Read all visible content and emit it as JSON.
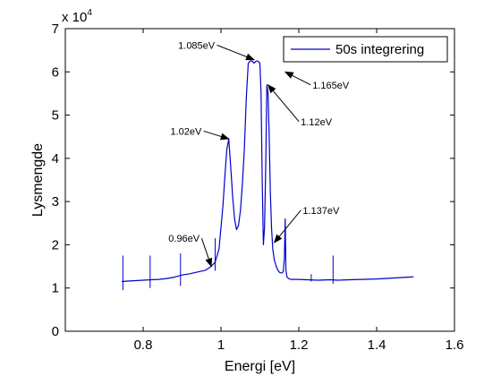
{
  "chart_data": {
    "type": "line",
    "title": "",
    "xlabel": "Energi [eV]",
    "ylabel": "Lysmengde",
    "xlim": [
      0.6,
      1.6
    ],
    "ylim": [
      0,
      70000
    ],
    "y_multiplier_label": "x 10",
    "y_multiplier_exponent": "4",
    "x_ticks": [
      0.8,
      1.0,
      1.2,
      1.4,
      1.6
    ],
    "x_tick_labels": [
      "0.8",
      "1",
      "1.2",
      "1.4",
      "1.6"
    ],
    "y_ticks": [
      0,
      10000,
      20000,
      30000,
      40000,
      50000,
      60000,
      70000
    ],
    "y_tick_labels": [
      "0",
      "1",
      "2",
      "3",
      "4",
      "5",
      "6",
      "7"
    ],
    "grid": false,
    "legend_position": "top-right",
    "series": [
      {
        "name": "50s integrering",
        "color": "#0000cc",
        "x": [
          0.745,
          0.76,
          0.78,
          0.8,
          0.82,
          0.84,
          0.86,
          0.88,
          0.9,
          0.92,
          0.94,
          0.96,
          0.975,
          0.985,
          0.995,
          1.0,
          1.005,
          1.01,
          1.015,
          1.02,
          1.025,
          1.03,
          1.035,
          1.04,
          1.045,
          1.05,
          1.055,
          1.06,
          1.065,
          1.07,
          1.075,
          1.08,
          1.085,
          1.09,
          1.095,
          1.1,
          1.103,
          1.106,
          1.109,
          1.112,
          1.115,
          1.118,
          1.121,
          1.124,
          1.127,
          1.13,
          1.133,
          1.137,
          1.142,
          1.147,
          1.152,
          1.157,
          1.16,
          1.163,
          1.165,
          1.167,
          1.17,
          1.175,
          1.18,
          1.2,
          1.22,
          1.25,
          1.28,
          1.3,
          1.33,
          1.36,
          1.4,
          1.44,
          1.48,
          1.495
        ],
        "y": [
          11500,
          11600,
          11700,
          11800,
          11900,
          12000,
          12200,
          12500,
          13000,
          13300,
          13700,
          14100,
          15000,
          16000,
          19000,
          24000,
          29000,
          36000,
          42000,
          44500,
          38000,
          31000,
          26000,
          23500,
          24500,
          28000,
          34000,
          42000,
          54000,
          62000,
          62500,
          62500,
          62000,
          62500,
          62500,
          62000,
          55000,
          35000,
          20000,
          24000,
          38000,
          57000,
          55000,
          45000,
          32000,
          24000,
          19000,
          16500,
          15000,
          14000,
          13500,
          13500,
          13800,
          17000,
          26000,
          14000,
          12500,
          12100,
          12000,
          12000,
          11900,
          11800,
          11900,
          11800,
          11900,
          12000,
          12100,
          12300,
          12500,
          12600
        ]
      }
    ],
    "spikes": [
      {
        "x": 0.748,
        "top": 17500,
        "bottom": 9500
      },
      {
        "x": 0.818,
        "top": 17500,
        "bottom": 10000
      },
      {
        "x": 0.896,
        "top": 18000,
        "bottom": 10500
      },
      {
        "x": 0.985,
        "top": 21500,
        "bottom": 14000
      },
      {
        "x": 1.232,
        "top": 13200,
        "bottom": 11500
      },
      {
        "x": 1.288,
        "top": 17500,
        "bottom": 11000
      }
    ],
    "annotations": [
      {
        "text": "1.085eV",
        "x": 1.085,
        "y": 62800,
        "text_x": 0.89,
        "text_y": 66200
      },
      {
        "text": "1.165eV",
        "x": 1.165,
        "y": 60000,
        "text_x": 1.235,
        "text_y": 57000
      },
      {
        "text": "1.12eV",
        "x": 1.121,
        "y": 57000,
        "text_x": 1.205,
        "text_y": 48500
      },
      {
        "text": "1.02eV",
        "x": 1.02,
        "y": 44500,
        "text_x": 0.87,
        "text_y": 46300
      },
      {
        "text": "1.137eV",
        "x": 1.137,
        "y": 20500,
        "text_x": 1.21,
        "text_y": 28000
      },
      {
        "text": "0.96eV",
        "x": 0.975,
        "y": 15000,
        "text_x": 0.865,
        "text_y": 21500
      }
    ]
  }
}
